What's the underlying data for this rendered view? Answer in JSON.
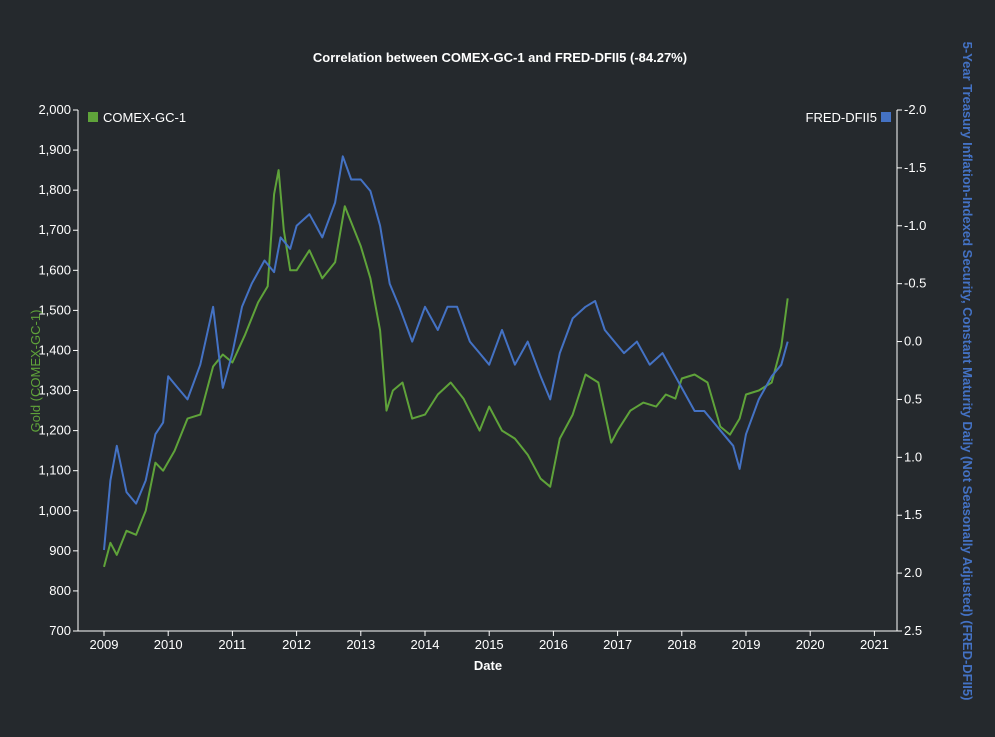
{
  "chart_data": {
    "type": "line",
    "title": "Correlation between COMEX-GC-1 and FRED-DFII5 (-84.27%)",
    "xlabel": "Date",
    "x_ticks": [
      "2009",
      "2010",
      "2011",
      "2012",
      "2013",
      "2014",
      "2015",
      "2016",
      "2017",
      "2018",
      "2019",
      "2020",
      "2021"
    ],
    "x_range": [
      2009,
      2021
    ],
    "y_left": {
      "label": "Gold (COMEX-GC-1)",
      "range": [
        700,
        2000
      ],
      "ticks": [
        "2,000",
        "1,900",
        "1,800",
        "1,700",
        "1,600",
        "1,500",
        "1,400",
        "1,300",
        "1,200",
        "1,100",
        "1,000",
        "900",
        "800",
        "700"
      ]
    },
    "y_right": {
      "label": "5-Year Treasury Inflation-Indexed Security, Constant Maturity Daily (Not Seasonally Adjusted) (FRED-DFII5)",
      "range": [
        -2.0,
        2.5
      ],
      "inverted": true,
      "ticks": [
        "-2.0",
        "-1.5",
        "-1.0",
        "-0.5",
        "0.0",
        "0.5",
        "1.0",
        "1.5",
        "2.0",
        "2.5"
      ]
    },
    "legend": {
      "left": "top-left",
      "right": "top-right"
    },
    "series": [
      {
        "name": "COMEX-GC-1",
        "axis": "left",
        "color": "#5fa33a",
        "x": [
          2009.0,
          2009.1,
          2009.2,
          2009.35,
          2009.5,
          2009.65,
          2009.8,
          2009.92,
          2010.1,
          2010.3,
          2010.5,
          2010.7,
          2010.85,
          2011.0,
          2011.2,
          2011.4,
          2011.55,
          2011.65,
          2011.72,
          2011.8,
          2011.9,
          2012.0,
          2012.2,
          2012.4,
          2012.6,
          2012.75,
          2012.9,
          2013.0,
          2013.15,
          2013.3,
          2013.4,
          2013.5,
          2013.65,
          2013.8,
          2014.0,
          2014.2,
          2014.4,
          2014.6,
          2014.85,
          2015.0,
          2015.2,
          2015.4,
          2015.6,
          2015.8,
          2015.95,
          2016.1,
          2016.3,
          2016.5,
          2016.7,
          2016.9,
          2017.0,
          2017.2,
          2017.4,
          2017.6,
          2017.75,
          2017.9,
          2018.0,
          2018.2,
          2018.4,
          2018.6,
          2018.75,
          2018.9,
          2019.0,
          2019.2,
          2019.4,
          2019.55,
          2019.65
        ],
        "values": [
          860,
          920,
          890,
          950,
          940,
          1000,
          1120,
          1100,
          1150,
          1230,
          1240,
          1360,
          1390,
          1370,
          1440,
          1520,
          1560,
          1790,
          1850,
          1700,
          1600,
          1600,
          1650,
          1580,
          1620,
          1760,
          1700,
          1660,
          1580,
          1450,
          1250,
          1300,
          1320,
          1230,
          1240,
          1290,
          1320,
          1280,
          1200,
          1260,
          1200,
          1180,
          1140,
          1080,
          1060,
          1180,
          1240,
          1340,
          1320,
          1170,
          1200,
          1250,
          1270,
          1260,
          1290,
          1280,
          1330,
          1340,
          1320,
          1210,
          1190,
          1230,
          1290,
          1300,
          1320,
          1410,
          1530
        ]
      },
      {
        "name": "FRED-DFII5",
        "axis": "right",
        "color": "#4472c4",
        "x": [
          2009.0,
          2009.1,
          2009.2,
          2009.35,
          2009.5,
          2009.65,
          2009.8,
          2009.92,
          2010.0,
          2010.15,
          2010.3,
          2010.5,
          2010.7,
          2010.85,
          2011.0,
          2011.15,
          2011.3,
          2011.5,
          2011.65,
          2011.75,
          2011.9,
          2012.0,
          2012.2,
          2012.4,
          2012.6,
          2012.72,
          2012.85,
          2013.0,
          2013.15,
          2013.3,
          2013.45,
          2013.6,
          2013.8,
          2014.0,
          2014.2,
          2014.35,
          2014.5,
          2014.7,
          2014.85,
          2015.0,
          2015.2,
          2015.4,
          2015.6,
          2015.8,
          2015.95,
          2016.1,
          2016.3,
          2016.5,
          2016.65,
          2016.8,
          2016.95,
          2017.1,
          2017.3,
          2017.5,
          2017.7,
          2017.9,
          2018.0,
          2018.2,
          2018.35,
          2018.5,
          2018.65,
          2018.8,
          2018.9,
          2019.0,
          2019.2,
          2019.4,
          2019.55,
          2019.65
        ],
        "values": [
          1.8,
          1.2,
          0.9,
          1.3,
          1.4,
          1.2,
          0.8,
          0.7,
          0.3,
          0.4,
          0.5,
          0.2,
          -0.3,
          0.4,
          0.1,
          -0.3,
          -0.5,
          -0.7,
          -0.6,
          -0.9,
          -0.8,
          -1.0,
          -1.1,
          -0.9,
          -1.2,
          -1.6,
          -1.4,
          -1.4,
          -1.3,
          -1.0,
          -0.5,
          -0.3,
          0.0,
          -0.3,
          -0.1,
          -0.3,
          -0.3,
          0.0,
          0.1,
          0.2,
          -0.1,
          0.2,
          0.0,
          0.3,
          0.5,
          0.1,
          -0.2,
          -0.3,
          -0.35,
          -0.1,
          0.0,
          0.1,
          0.0,
          0.2,
          0.1,
          0.3,
          0.4,
          0.6,
          0.6,
          0.7,
          0.8,
          0.9,
          1.1,
          0.8,
          0.5,
          0.3,
          0.2,
          0.0
        ]
      }
    ]
  }
}
